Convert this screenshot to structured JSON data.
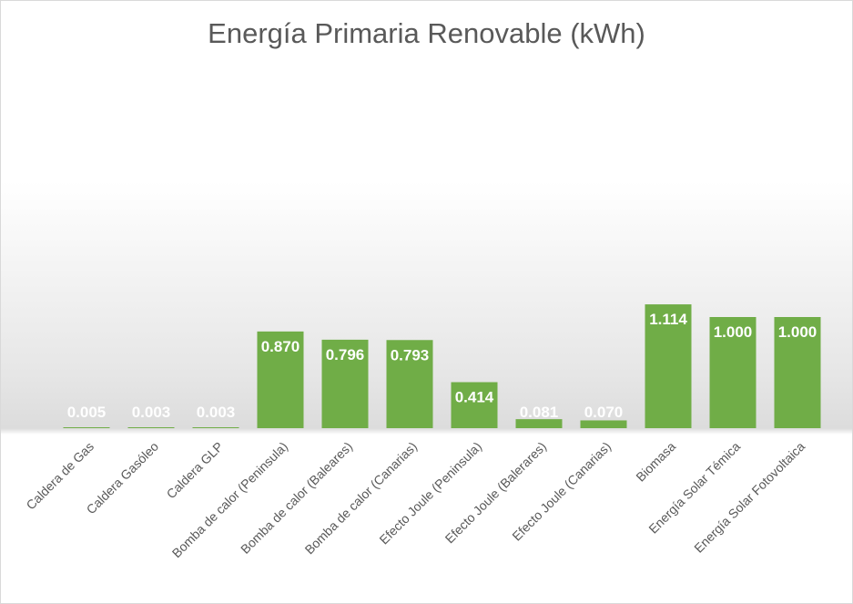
{
  "chart_data": {
    "type": "bar",
    "title": "Energía Primaria Renovable (kWh)",
    "xlabel": "",
    "ylabel": "",
    "categories": [
      "Caldera de Gas",
      "Caldera Gasóleo",
      "Caldera GLP",
      "Bomba de calor (Peninsula)",
      "Bomba de calor (Baleares)",
      "Bomba de calor (Canarias)",
      "Efecto Joule (Peninsula)",
      "Efecto Joule (Balerares)",
      "Efecto Joule (Canarias)",
      "Biomasa",
      "Energía Solar Témica",
      "Energía Solar Fotovoltaica"
    ],
    "values": [
      0.005,
      0.003,
      0.003,
      0.87,
      0.796,
      0.793,
      0.414,
      0.081,
      0.07,
      1.114,
      1.0,
      1.0
    ],
    "data_labels": [
      "0.005",
      "0.003",
      "0.003",
      "0.870",
      "0.796",
      "0.793",
      "0.414",
      "0.081",
      "0.070",
      "1.114",
      "1.000",
      "1.000"
    ],
    "ylim": [
      0,
      1.2
    ],
    "grid": false,
    "legend": "none",
    "bar_color": "#70ad47",
    "label_color": "#ffffff"
  }
}
